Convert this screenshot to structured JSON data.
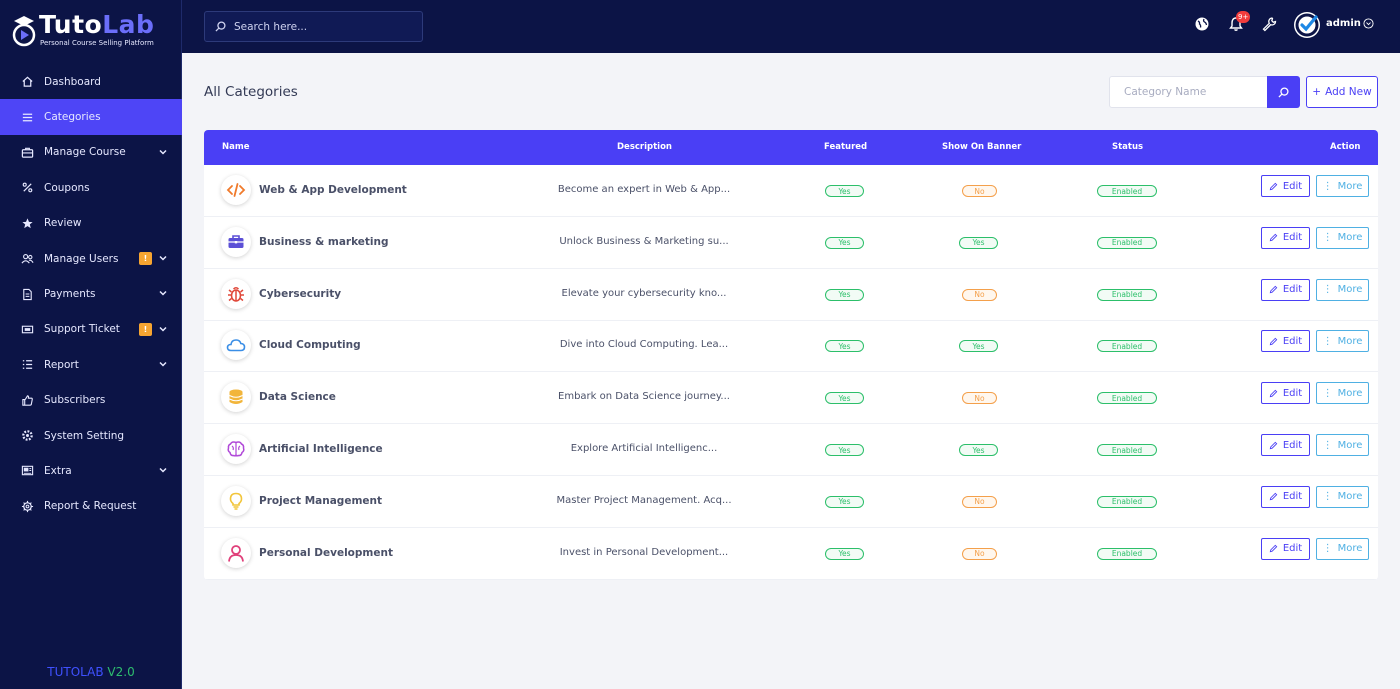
{
  "brand": {
    "name_part1": "Tuto",
    "name_part2": "Lab",
    "tagline": "Personal Course Selling Platform"
  },
  "topbar": {
    "search_placeholder": "Search here...",
    "notification_count": "9+",
    "username": "admin"
  },
  "sidebar": {
    "items": [
      {
        "label": "Dashboard",
        "icon": "home-icon",
        "active": false,
        "badge": "",
        "chevron": false
      },
      {
        "label": "Categories",
        "icon": "list-icon",
        "active": true,
        "badge": "",
        "chevron": false
      },
      {
        "label": "Manage Course",
        "icon": "briefcase-icon",
        "active": false,
        "badge": "",
        "chevron": true
      },
      {
        "label": "Coupons",
        "icon": "percent-icon",
        "active": false,
        "badge": "",
        "chevron": false
      },
      {
        "label": "Review",
        "icon": "star-icon",
        "active": false,
        "badge": "",
        "chevron": false
      },
      {
        "label": "Manage Users",
        "icon": "users-icon",
        "active": false,
        "badge": "!",
        "chevron": true
      },
      {
        "label": "Payments",
        "icon": "document-icon",
        "active": false,
        "badge": "",
        "chevron": true
      },
      {
        "label": "Support Ticket",
        "icon": "ticket-icon",
        "active": false,
        "badge": "!",
        "chevron": true
      },
      {
        "label": "Report",
        "icon": "report-list-icon",
        "active": false,
        "badge": "",
        "chevron": true
      },
      {
        "label": "Subscribers",
        "icon": "thumbs-up-icon",
        "active": false,
        "badge": "",
        "chevron": false
      },
      {
        "label": "System Setting",
        "icon": "cog-icon",
        "active": false,
        "badge": "",
        "chevron": false
      },
      {
        "label": "Extra",
        "icon": "media-icon",
        "active": false,
        "badge": "",
        "chevron": true
      },
      {
        "label": "Report & Request",
        "icon": "gear-icon",
        "active": false,
        "badge": "",
        "chevron": false
      }
    ],
    "version_label": "TUTOLAB",
    "version_number": "V2.0"
  },
  "main": {
    "title": "All Categories",
    "search_placeholder": "Category Name",
    "add_new_label": "Add New",
    "columns": {
      "name": "Name",
      "description": "Description",
      "featured": "Featured",
      "banner": "Show On Banner",
      "status": "Status",
      "action": "Action"
    },
    "edit_label": "Edit",
    "more_label": "More",
    "rows": [
      {
        "name": "Web & App Development",
        "description": "Become an expert in Web & App...",
        "featured": "Yes",
        "banner": "No",
        "status": "Enabled",
        "icon": "code-icon",
        "color": "#f07a2b"
      },
      {
        "name": "Business & marketing",
        "description": "Unlock Business & Marketing su...",
        "featured": "Yes",
        "banner": "Yes",
        "status": "Enabled",
        "icon": "briefcase-icon",
        "color": "#5b4fd6"
      },
      {
        "name": "Cybersecurity",
        "description": "Elevate your cybersecurity kno...",
        "featured": "Yes",
        "banner": "No",
        "status": "Enabled",
        "icon": "bug-icon",
        "color": "#e0483a"
      },
      {
        "name": "Cloud Computing",
        "description": "Dive into Cloud Computing. Lea...",
        "featured": "Yes",
        "banner": "Yes",
        "status": "Enabled",
        "icon": "cloud-icon",
        "color": "#3a8ee6"
      },
      {
        "name": "Data Science",
        "description": "Embark on Data Science journey...",
        "featured": "Yes",
        "banner": "No",
        "status": "Enabled",
        "icon": "database-icon",
        "color": "#f2b53a"
      },
      {
        "name": "Artificial Intelligence",
        "description": "Explore Artificial Intelligenc...",
        "featured": "Yes",
        "banner": "Yes",
        "status": "Enabled",
        "icon": "brain-icon",
        "color": "#b048d8"
      },
      {
        "name": "Project Management",
        "description": "Master Project Management. Acq...",
        "featured": "Yes",
        "banner": "No",
        "status": "Enabled",
        "icon": "lightbulb-icon",
        "color": "#f2c53a"
      },
      {
        "name": "Personal Development",
        "description": "Invest in Personal Development...",
        "featured": "Yes",
        "banner": "No",
        "status": "Enabled",
        "icon": "person-icon",
        "color": "#e0407a"
      }
    ]
  }
}
